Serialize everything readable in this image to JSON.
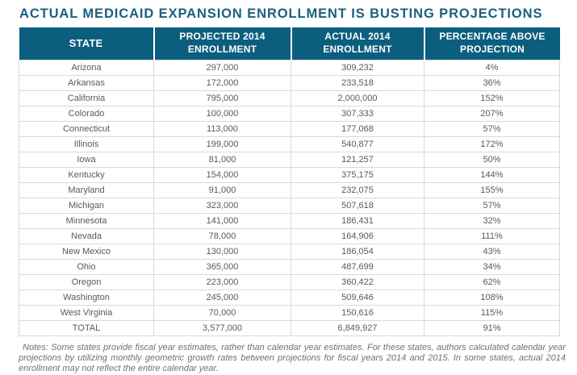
{
  "title": "ACTUAL MEDICAID EXPANSION ENROLLMENT IS BUSTING PROJECTIONS",
  "colors": {
    "title_text": "#1a6080",
    "header_background": "#0c5e7e",
    "header_text": "#ffffff",
    "body_text": "#58595b",
    "grid_border": "#d8d9da",
    "notes_text": "#707174"
  },
  "table": {
    "columns": [
      "STATE",
      "PROJECTED 2014 ENROLLMENT",
      "ACTUAL 2014 ENROLLMENT",
      "PERCENTAGE ABOVE PROJECTION"
    ],
    "rows": [
      {
        "state": "Arizona",
        "projected": "297,000",
        "actual": "309,232",
        "percent": "4%"
      },
      {
        "state": "Arkansas",
        "projected": "172,000",
        "actual": "233,518",
        "percent": "36%"
      },
      {
        "state": "California",
        "projected": "795,000",
        "actual": "2,000,000",
        "percent": "152%"
      },
      {
        "state": "Colorado",
        "projected": "100,000",
        "actual": "307,333",
        "percent": "207%"
      },
      {
        "state": "Connecticut",
        "projected": "113,000",
        "actual": "177,068",
        "percent": "57%"
      },
      {
        "state": "Illinois",
        "projected": "199,000",
        "actual": "540,877",
        "percent": "172%"
      },
      {
        "state": "Iowa",
        "projected": "81,000",
        "actual": "121,257",
        "percent": "50%"
      },
      {
        "state": "Kentucky",
        "projected": "154,000",
        "actual": "375,175",
        "percent": "144%"
      },
      {
        "state": "Maryland",
        "projected": "91,000",
        "actual": "232,075",
        "percent": "155%"
      },
      {
        "state": "Michigan",
        "projected": "323,000",
        "actual": "507,618",
        "percent": "57%"
      },
      {
        "state": "Minnesota",
        "projected": "141,000",
        "actual": "186,431",
        "percent": "32%"
      },
      {
        "state": "Nevada",
        "projected": "78,000",
        "actual": "164,906",
        "percent": "111%"
      },
      {
        "state": "New Mexico",
        "projected": "130,000",
        "actual": "186,054",
        "percent": "43%"
      },
      {
        "state": "Ohio",
        "projected": "365,000",
        "actual": "487,699",
        "percent": "34%"
      },
      {
        "state": "Oregon",
        "projected": "223,000",
        "actual": "360,422",
        "percent": "62%"
      },
      {
        "state": "Washington",
        "projected": "245,000",
        "actual": "509,646",
        "percent": "108%"
      },
      {
        "state": "West Virginia",
        "projected": "70,000",
        "actual": "150,616",
        "percent": "115%"
      },
      {
        "state": "TOTAL",
        "projected": "3,577,000",
        "actual": "6,849,927",
        "percent": "91%"
      }
    ]
  },
  "notes": "Notes: Some states provide fiscal year estimates, rather than calendar year estimates. For these states, authors calculated calendar year projections by utilizing monthly geometric growth rates between projections for fiscal years 2014 and 2015. In some states, actual 2014 enrollment may not reflect the entire calendar year.",
  "chart_data": {
    "type": "table",
    "title": "ACTUAL MEDICAID EXPANSION ENROLLMENT IS BUSTING PROJECTIONS",
    "categories": [
      "Arizona",
      "Arkansas",
      "California",
      "Colorado",
      "Connecticut",
      "Illinois",
      "Iowa",
      "Kentucky",
      "Maryland",
      "Michigan",
      "Minnesota",
      "Nevada",
      "New Mexico",
      "Ohio",
      "Oregon",
      "Washington",
      "West Virginia"
    ],
    "series": [
      {
        "name": "PROJECTED 2014 ENROLLMENT",
        "values": [
          297000,
          172000,
          795000,
          100000,
          113000,
          199000,
          81000,
          154000,
          91000,
          323000,
          141000,
          78000,
          130000,
          365000,
          223000,
          245000,
          70000
        ]
      },
      {
        "name": "ACTUAL 2014 ENROLLMENT",
        "values": [
          309232,
          233518,
          2000000,
          307333,
          177068,
          540877,
          121257,
          375175,
          232075,
          507618,
          186431,
          164906,
          186054,
          487699,
          360422,
          509646,
          150616
        ]
      },
      {
        "name": "PERCENTAGE ABOVE PROJECTION (%)",
        "values": [
          4,
          36,
          152,
          207,
          57,
          172,
          50,
          144,
          155,
          57,
          32,
          111,
          43,
          34,
          62,
          108,
          115
        ]
      }
    ],
    "totals": {
      "label": "TOTAL",
      "projected_2014_enrollment": 3577000,
      "actual_2014_enrollment": 6849927,
      "percentage_above_projection": 91
    }
  }
}
